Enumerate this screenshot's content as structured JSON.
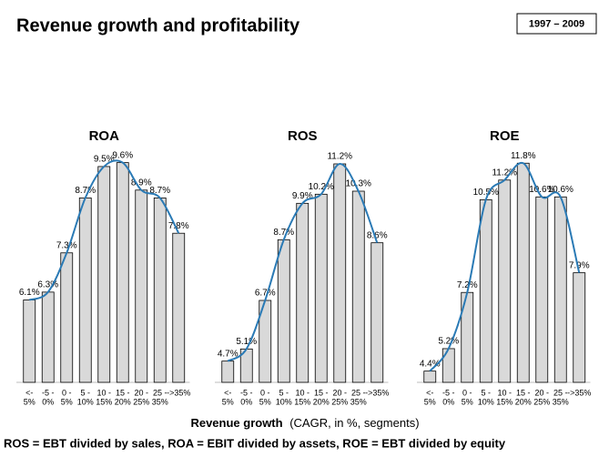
{
  "header": {
    "title": "Revenue growth and profitability",
    "period": "1997 – 2009"
  },
  "x_axis_label": {
    "title": "Revenue growth",
    "detail": "(CAGR, in %, segments)"
  },
  "footnote": "ROS = EBT divided by sales, ROA = EBIT divided by assets, ROE = EBT divided by equity",
  "chart_data": [
    {
      "type": "bar",
      "title": "ROA",
      "categories": [
        [
          "<-",
          "5%"
        ],
        [
          "-5 -",
          "0%"
        ],
        [
          "0 -",
          "5%"
        ],
        [
          "5 -",
          "10%"
        ],
        [
          "10 -",
          "15%"
        ],
        [
          "15 -",
          "20%"
        ],
        [
          "20 -",
          "25%"
        ],
        [
          "25 -",
          "35%"
        ],
        [
          "->35%"
        ]
      ],
      "values": [
        6.1,
        6.3,
        7.3,
        8.7,
        9.5,
        9.6,
        8.9,
        8.7,
        7.8
      ],
      "value_labels": [
        "6.1%",
        "6.3%",
        "7.3%",
        "8.7%",
        "9.5%",
        "9.6%",
        "8.9%",
        "8.7%",
        "7.8%"
      ],
      "color": "#d9d9d9",
      "trend_color": "#2a7ab5",
      "ylim": [
        4,
        9.8
      ]
    },
    {
      "type": "bar",
      "title": "ROS",
      "categories": [
        [
          "<-",
          "5%"
        ],
        [
          "-5 -",
          "0%"
        ],
        [
          "0 -",
          "5%"
        ],
        [
          "5 -",
          "10%"
        ],
        [
          "10 -",
          "15%"
        ],
        [
          "15 -",
          "20%"
        ],
        [
          "20 -",
          "25%"
        ],
        [
          "25 -",
          "35%"
        ],
        [
          "->35%"
        ]
      ],
      "values": [
        4.7,
        5.1,
        6.7,
        8.7,
        9.9,
        10.2,
        11.2,
        10.3,
        8.6
      ],
      "value_labels": [
        "4.7%",
        "5.1%",
        "6.7%",
        "8.7%",
        "9.9%",
        "10.2%",
        "11.2%",
        "10.3%",
        "8.6%"
      ],
      "color": "#d9d9d9",
      "trend_color": "#2a7ab5",
      "ylim": [
        4,
        11.5
      ]
    },
    {
      "type": "bar",
      "title": "ROE",
      "categories": [
        [
          "<-",
          "5%"
        ],
        [
          "-5 -",
          "0%"
        ],
        [
          "0 -",
          "5%"
        ],
        [
          "5 -",
          "10%"
        ],
        [
          "10 -",
          "15%"
        ],
        [
          "15 -",
          "20%"
        ],
        [
          "20 -",
          "25%"
        ],
        [
          "25 -",
          "35%"
        ],
        [
          "->35%"
        ]
      ],
      "values": [
        4.4,
        5.2,
        7.2,
        10.5,
        11.2,
        11.8,
        10.6,
        10.6,
        7.9
      ],
      "value_labels": [
        "4.4%",
        "5.2%",
        "7.2%",
        "10.5%",
        "11.2%",
        "11.8%",
        "10.6%",
        "10.6%",
        "7.9%"
      ],
      "color": "#d9d9d9",
      "trend_color": "#2a7ab5",
      "ylim": [
        4,
        12.1
      ]
    }
  ]
}
